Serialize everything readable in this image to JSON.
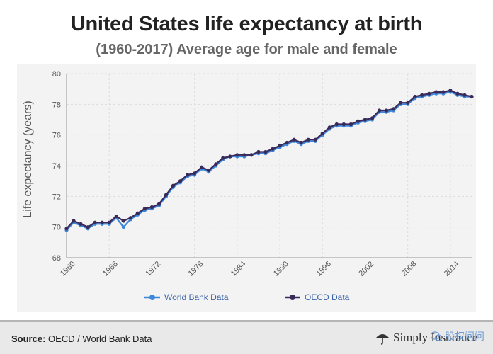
{
  "title": "United States life expectancy at birth",
  "subtitle": "(1960-2017) Average age for male and female",
  "source_label": "Source:",
  "source_text": "OECD / World Bank Data",
  "brand": "Simply Insurance",
  "watermark": "股权问问",
  "colors": {
    "world_bank": "#3d86d9",
    "oecd": "#3a2a5a",
    "grid": "#dcdcdc",
    "background": "#f3f3f3"
  },
  "chart_data": {
    "type": "line",
    "title": "United States life expectancy at birth",
    "subtitle": "(1960-2017) Average age for male and female",
    "xlabel": "",
    "ylabel": "Life expectancy (years)",
    "ylim": [
      68,
      80
    ],
    "yticks": [
      68,
      70,
      72,
      74,
      76,
      78,
      80
    ],
    "xlim": [
      1960,
      2017
    ],
    "xticks": [
      "1960",
      "1966",
      "1972",
      "1978",
      "1984",
      "1990",
      "1996",
      "2002",
      "2008",
      "2014"
    ],
    "legend_position": "bottom-center",
    "grid": true,
    "x": [
      1960,
      1961,
      1962,
      1963,
      1964,
      1965,
      1966,
      1967,
      1968,
      1969,
      1970,
      1971,
      1972,
      1973,
      1974,
      1975,
      1976,
      1977,
      1978,
      1979,
      1980,
      1981,
      1982,
      1983,
      1984,
      1985,
      1986,
      1987,
      1988,
      1989,
      1990,
      1991,
      1992,
      1993,
      1994,
      1995,
      1996,
      1997,
      1998,
      1999,
      2000,
      2001,
      2002,
      2003,
      2004,
      2005,
      2006,
      2007,
      2008,
      2009,
      2010,
      2011,
      2012,
      2013,
      2014,
      2015,
      2016,
      2017
    ],
    "series": [
      {
        "name": "World Bank Data",
        "values": [
          69.8,
          70.3,
          70.1,
          69.9,
          70.2,
          70.2,
          70.2,
          70.6,
          70.0,
          70.5,
          70.8,
          71.1,
          71.2,
          71.4,
          72.0,
          72.6,
          72.9,
          73.3,
          73.4,
          73.8,
          73.6,
          74.0,
          74.4,
          74.6,
          74.6,
          74.6,
          74.7,
          74.8,
          74.8,
          75.0,
          75.2,
          75.4,
          75.6,
          75.4,
          75.6,
          75.6,
          76.0,
          76.4,
          76.6,
          76.6,
          76.6,
          76.8,
          76.9,
          77.0,
          77.5,
          77.5,
          77.6,
          78.0,
          78.0,
          78.4,
          78.5,
          78.6,
          78.7,
          78.7,
          78.8,
          78.6,
          78.5,
          78.5
        ]
      },
      {
        "name": "OECD Data",
        "values": [
          69.9,
          70.4,
          70.2,
          70.0,
          70.3,
          70.3,
          70.3,
          70.7,
          70.4,
          70.6,
          70.9,
          71.2,
          71.3,
          71.5,
          72.1,
          72.7,
          73.0,
          73.4,
          73.5,
          73.9,
          73.7,
          74.1,
          74.5,
          74.6,
          74.7,
          74.7,
          74.7,
          74.9,
          74.9,
          75.1,
          75.3,
          75.5,
          75.7,
          75.5,
          75.7,
          75.7,
          76.1,
          76.5,
          76.7,
          76.7,
          76.7,
          76.9,
          77.0,
          77.1,
          77.6,
          77.6,
          77.7,
          78.1,
          78.1,
          78.5,
          78.6,
          78.7,
          78.8,
          78.8,
          78.9,
          78.7,
          78.6,
          78.5
        ]
      }
    ]
  }
}
